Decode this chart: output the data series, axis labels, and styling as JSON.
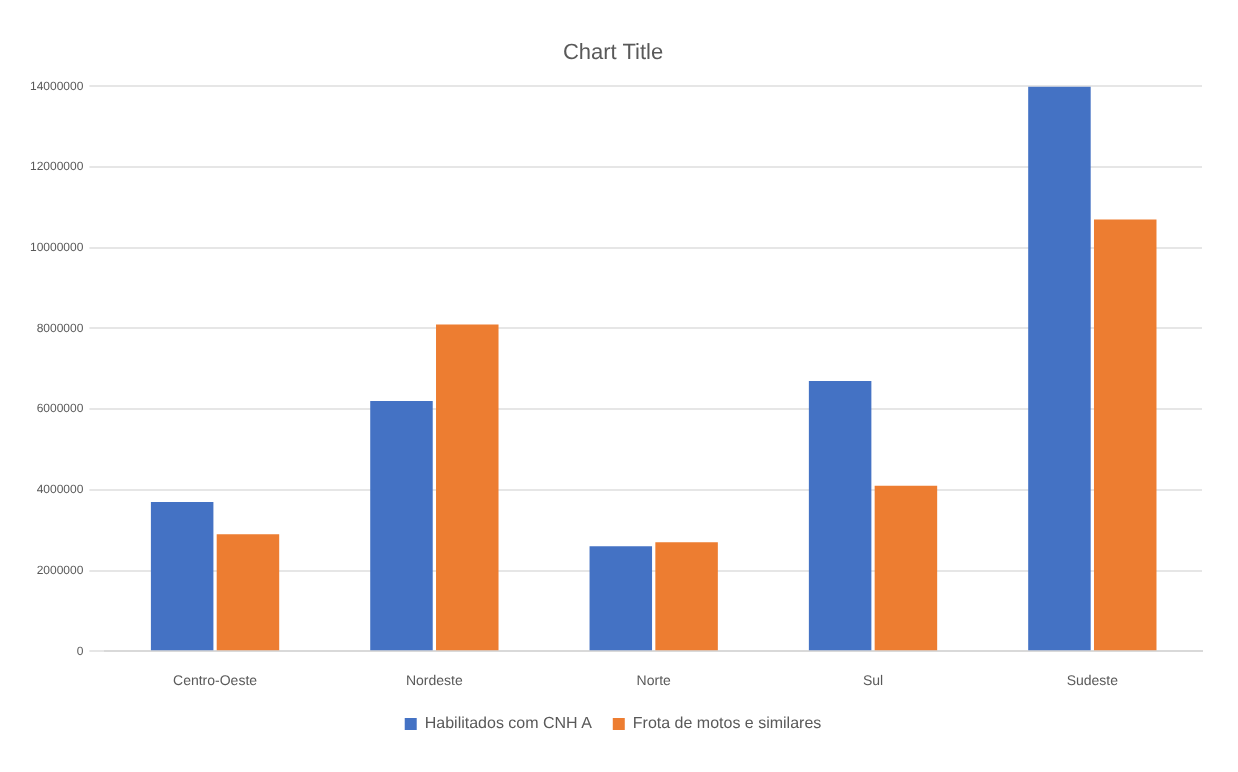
{
  "chart_data": {
    "type": "bar",
    "title": "Chart Title",
    "categories": [
      "Centro-Oeste",
      "Nordeste",
      "Norte",
      "Sul",
      "Sudeste"
    ],
    "series": [
      {
        "name": "Habilitados com CNH A",
        "color": "#4472c4",
        "values": [
          3700000,
          6200000,
          2600000,
          6700000,
          14000000
        ]
      },
      {
        "name": "Frota de motos e similares",
        "color": "#ed7d31",
        "values": [
          2900000,
          8100000,
          2700000,
          4100000,
          10700000
        ]
      }
    ],
    "ylim": [
      0,
      14000000
    ],
    "yticks": [
      0,
      2000000,
      4000000,
      6000000,
      8000000,
      10000000,
      12000000,
      14000000
    ],
    "grid": "y",
    "legend": "bottom"
  }
}
